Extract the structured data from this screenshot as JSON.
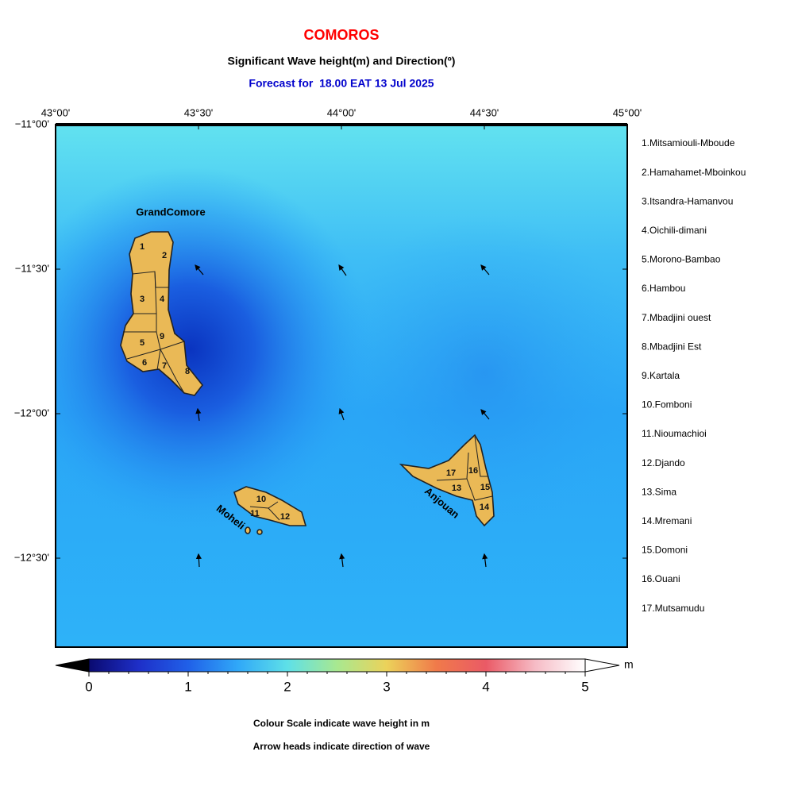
{
  "header": {
    "title": "COMOROS",
    "subtitle": "Significant Wave height(m) and Direction(º)",
    "forecast": "Forecast for  18.00 EAT 13 Jul 2025"
  },
  "map": {
    "lon_labels": [
      "43°00'",
      "43°30'",
      "44°00'",
      "44°30'",
      "45°00'"
    ],
    "lat_labels": [
      "−11°00'",
      "−11°30'",
      "−12°00'",
      "−12°30'"
    ],
    "islands": [
      "GrandComore",
      "Moheli",
      "Anjouan"
    ],
    "regions": [
      "1",
      "2",
      "3",
      "4",
      "5",
      "6",
      "7",
      "8",
      "9",
      "10",
      "11",
      "12",
      "13",
      "14",
      "15",
      "16",
      "17"
    ]
  },
  "legend": [
    "1.Mitsamiouli-Mboude",
    "2.Hamahamet-Mboinkou",
    "3.Itsandra-Hamanvou",
    "4.Oichili-dimani",
    "5.Morono-Bambao",
    "6.Hambou",
    "7.Mbadjini ouest",
    "8.Mbadjini Est",
    "9.Kartala",
    "10.Fomboni",
    "11.Nioumachioi",
    "12.Djando",
    "13.Sima",
    "14.Mremani",
    "15.Domoni",
    "16.Ouani",
    "17.Mutsamudu"
  ],
  "colorbar": {
    "ticks": [
      0,
      1,
      2,
      3,
      4,
      5
    ],
    "unit": "m"
  },
  "notes": [
    "Colour Scale indicate wave height in m",
    "Arrow heads indicate direction of wave"
  ]
}
